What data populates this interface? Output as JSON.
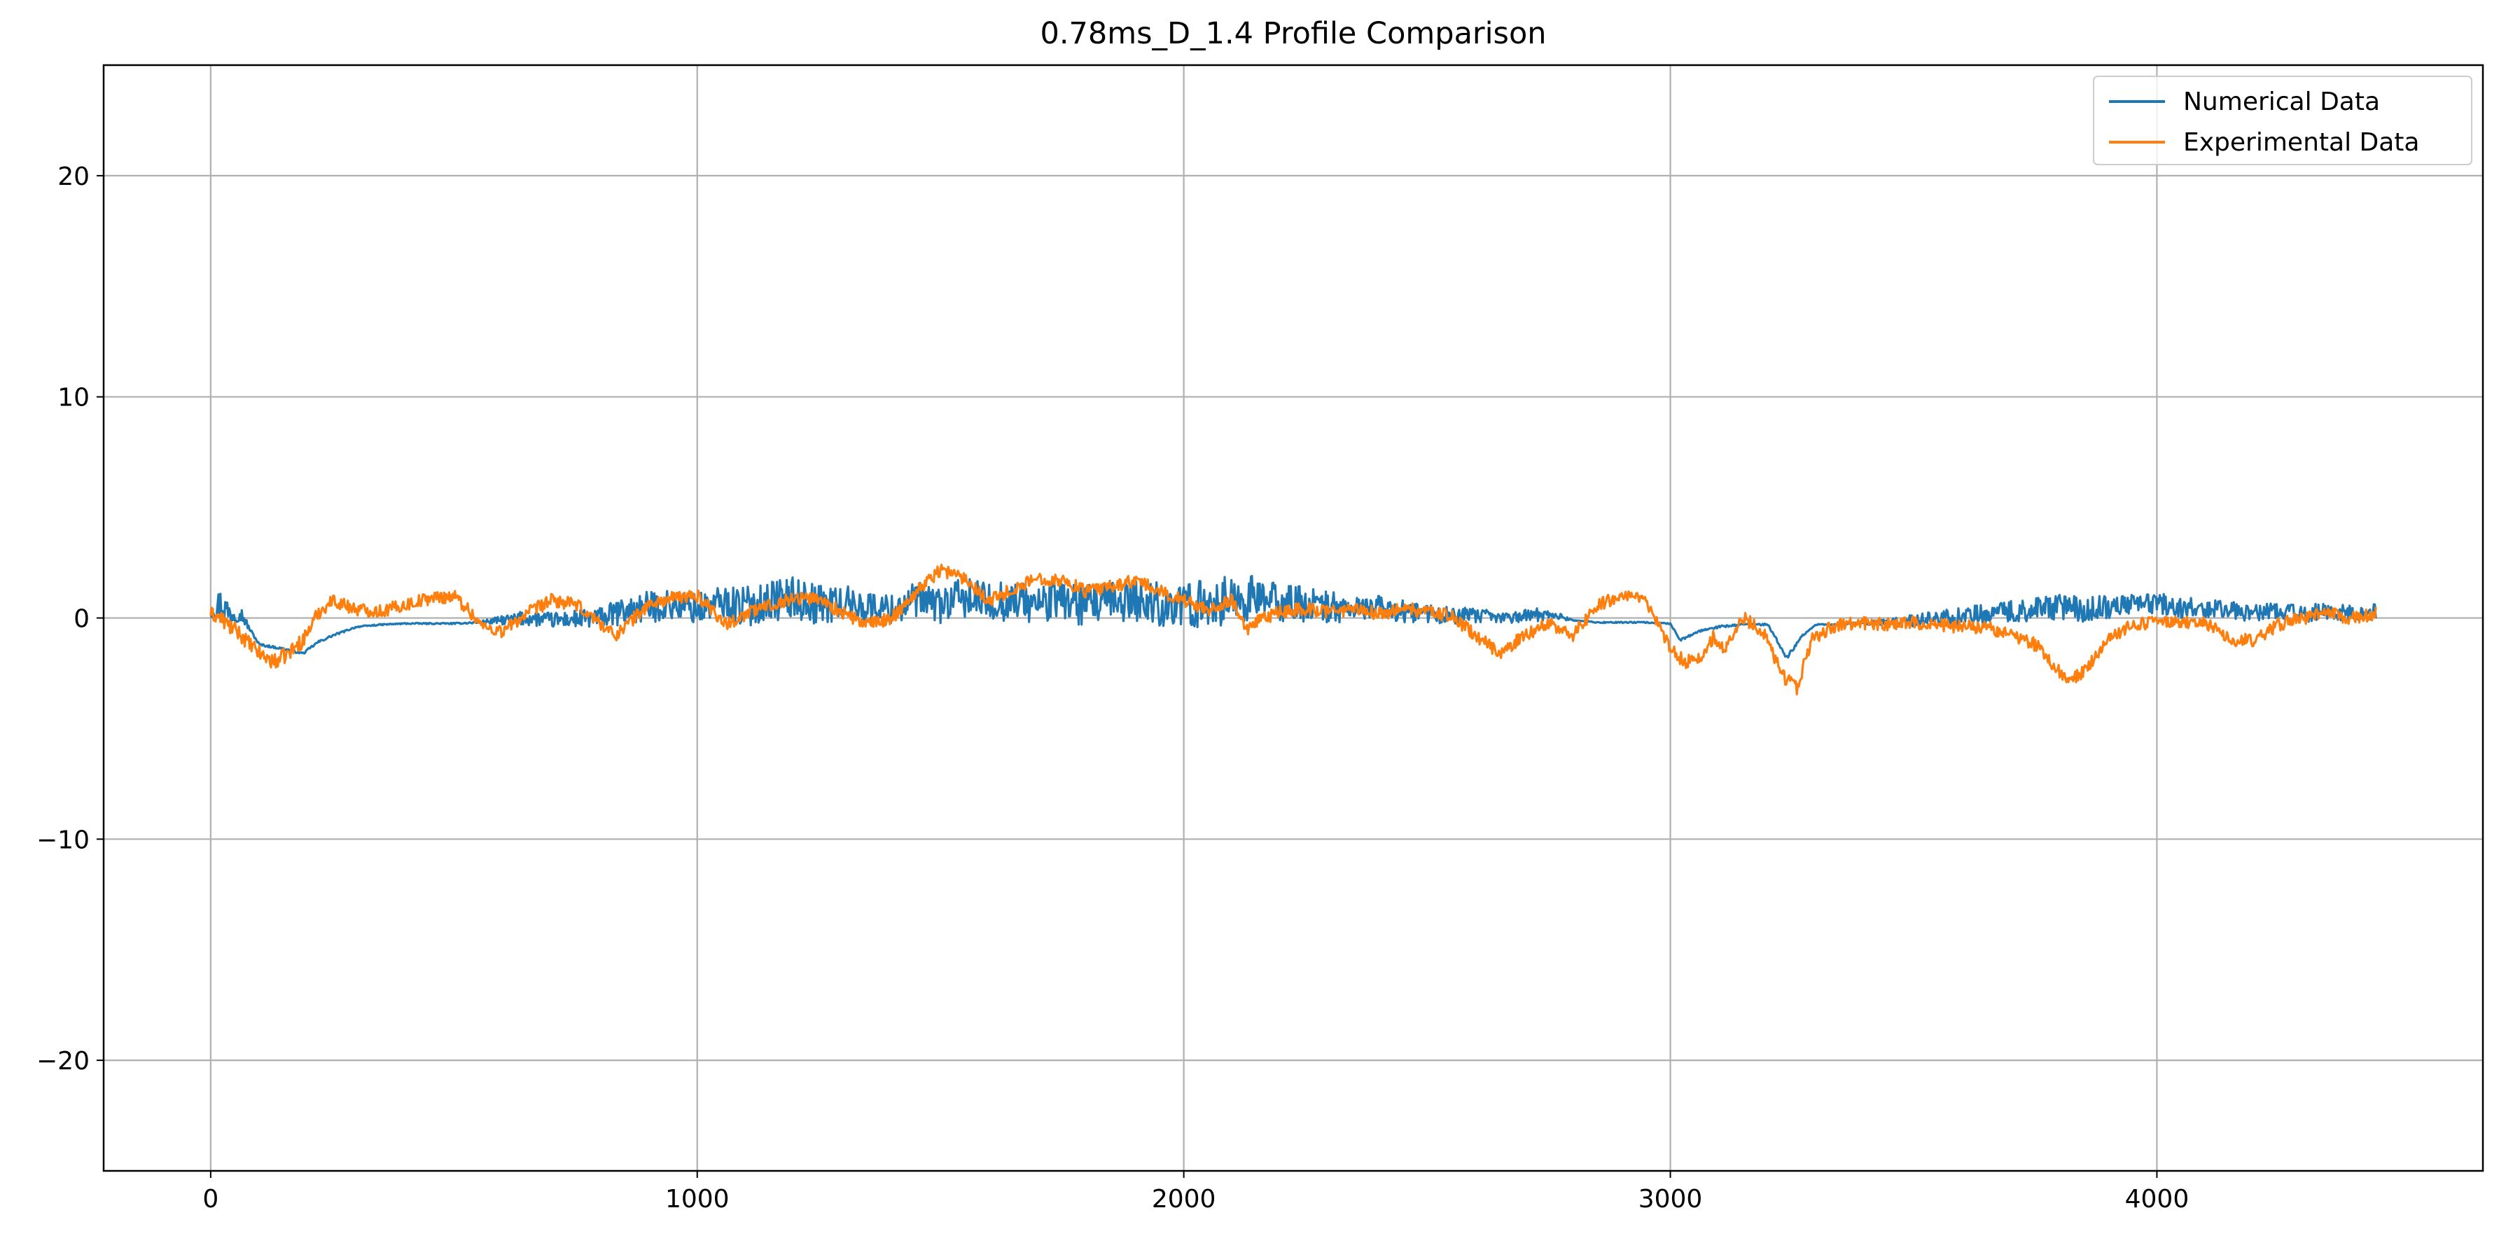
{
  "chart_data": {
    "type": "line",
    "title": "0.78ms_D_1.4 Profile Comparison",
    "xlabel": "",
    "ylabel": "",
    "xlim": [
      -220,
      4670
    ],
    "ylim": [
      -25,
      25
    ],
    "x_ticks": [
      0,
      1000,
      2000,
      3000,
      4000
    ],
    "x_tick_labels": [
      "0",
      "1000",
      "2000",
      "3000",
      "4000"
    ],
    "y_ticks": [
      -20,
      -10,
      0,
      10,
      20
    ],
    "y_tick_labels": [
      "−20",
      "−10",
      "0",
      "10",
      "20"
    ],
    "grid": true,
    "legend": {
      "position": "top-right"
    },
    "series": [
      {
        "name": "Numerical Data",
        "color": "#1f77b4",
        "x": [
          0,
          20,
          40,
          60,
          80,
          100,
          150,
          190,
          220,
          250,
          300,
          350,
          400,
          500,
          550,
          600,
          650,
          700,
          750,
          800,
          850,
          900,
          950,
          1000,
          1050,
          1100,
          1150,
          1200,
          1250,
          1300,
          1350,
          1400,
          1450,
          1500,
          1550,
          1600,
          1650,
          1700,
          1750,
          1800,
          1850,
          1900,
          1950,
          2000,
          2050,
          2100,
          2150,
          2200,
          2250,
          2300,
          2350,
          2400,
          2450,
          2500,
          2550,
          2600,
          2650,
          2700,
          2750,
          2800,
          2850,
          2900,
          2950,
          3000,
          3020,
          3060,
          3100,
          3150,
          3200,
          3240,
          3270,
          3300,
          3350,
          3400,
          3450,
          3500,
          3550,
          3600,
          3650,
          3700,
          3750,
          3800,
          3850,
          3900,
          3950,
          4000,
          4050,
          4100,
          4150,
          4200,
          4250,
          4300,
          4350,
          4400,
          4450
        ],
        "values": [
          0.4,
          0.6,
          0.2,
          0.3,
          -0.5,
          -1.2,
          -1.4,
          -1.6,
          -1.1,
          -0.8,
          -0.4,
          -0.3,
          -0.25,
          -0.25,
          -0.2,
          -0.1,
          0.0,
          -0.1,
          -0.05,
          0.0,
          0.3,
          0.5,
          0.6,
          0.4,
          0.7,
          0.5,
          0.8,
          0.9,
          0.6,
          0.7,
          0.5,
          0.4,
          0.8,
          0.6,
          0.9,
          0.7,
          0.8,
          0.6,
          0.9,
          0.5,
          0.7,
          0.8,
          0.6,
          0.5,
          0.7,
          0.8,
          0.9,
          0.7,
          0.6,
          0.5,
          0.4,
          0.5,
          0.3,
          0.2,
          0.1,
          0.1,
          0.0,
          0.1,
          0.2,
          -0.1,
          -0.2,
          -0.2,
          -0.2,
          -0.25,
          -1.0,
          -0.6,
          -0.4,
          -0.3,
          -0.3,
          -1.8,
          -0.8,
          -0.3,
          -0.3,
          -0.2,
          -0.2,
          -0.1,
          0.0,
          0.1,
          0.2,
          0.3,
          0.4,
          0.5,
          0.4,
          0.5,
          0.6,
          0.7,
          0.5,
          0.4,
          0.3,
          0.2,
          0.3,
          0.2,
          0.3,
          0.2,
          0.3
        ],
        "noise": [
          0.4,
          0.8,
          0.6,
          0.4,
          0.1,
          0.05,
          0.05,
          0.05,
          0.05,
          0.05,
          0.03,
          0.03,
          0.03,
          0.03,
          0.05,
          0.2,
          0.35,
          0.35,
          0.4,
          0.5,
          0.6,
          0.7,
          0.7,
          0.7,
          0.8,
          0.9,
          0.9,
          1.0,
          0.9,
          0.8,
          0.7,
          0.7,
          0.8,
          0.9,
          0.9,
          0.9,
          0.9,
          0.9,
          1.0,
          1.0,
          1.0,
          1.0,
          1.0,
          1.0,
          1.1,
          1.1,
          1.0,
          0.9,
          0.8,
          0.7,
          0.6,
          0.5,
          0.5,
          0.4,
          0.4,
          0.35,
          0.3,
          0.3,
          0.3,
          0.03,
          0.03,
          0.03,
          0.03,
          0.03,
          0.05,
          0.05,
          0.05,
          0.05,
          0.05,
          0.1,
          0.05,
          0.03,
          0.03,
          0.1,
          0.2,
          0.3,
          0.35,
          0.4,
          0.45,
          0.5,
          0.55,
          0.6,
          0.6,
          0.55,
          0.5,
          0.5,
          0.5,
          0.45,
          0.45,
          0.4,
          0.4,
          0.4,
          0.4,
          0.35,
          0.35
        ]
      },
      {
        "name": "Experimental Data",
        "color": "#ff7f0e",
        "x": [
          0,
          20,
          40,
          60,
          80,
          100,
          130,
          160,
          190,
          220,
          250,
          300,
          350,
          400,
          450,
          500,
          520,
          560,
          600,
          650,
          700,
          750,
          800,
          830,
          860,
          900,
          950,
          1000,
          1030,
          1060,
          1100,
          1150,
          1200,
          1250,
          1300,
          1350,
          1400,
          1450,
          1500,
          1550,
          1600,
          1650,
          1700,
          1750,
          1800,
          1850,
          1900,
          1950,
          2000,
          2050,
          2100,
          2130,
          2150,
          2200,
          2250,
          2300,
          2350,
          2400,
          2450,
          2500,
          2550,
          2600,
          2650,
          2700,
          2750,
          2800,
          2850,
          2900,
          2930,
          2960,
          3000,
          3030,
          3060,
          3090,
          3110,
          3150,
          3190,
          3230,
          3260,
          3290,
          3330,
          3380,
          3450,
          3500,
          3550,
          3600,
          3650,
          3700,
          3750,
          3800,
          3820,
          3850,
          3900,
          3950,
          4000,
          4050,
          4100,
          4150,
          4200,
          4250,
          4300,
          4350,
          4400,
          4450
        ],
        "values": [
          0.2,
          0.0,
          -0.4,
          -0.7,
          -1.2,
          -1.6,
          -2.0,
          -1.6,
          -1.0,
          0.2,
          0.8,
          0.4,
          0.3,
          0.6,
          0.9,
          1.0,
          0.6,
          -0.4,
          -0.6,
          0.2,
          0.8,
          0.6,
          -0.2,
          -0.8,
          -0.2,
          0.6,
          0.9,
          1.0,
          0.4,
          -0.3,
          0.2,
          0.6,
          0.9,
          0.9,
          0.2,
          -0.3,
          0.0,
          1.2,
          2.2,
          1.8,
          0.8,
          1.3,
          1.8,
          1.7,
          1.2,
          1.4,
          1.7,
          1.2,
          0.8,
          0.4,
          0.8,
          -0.6,
          -0.2,
          0.3,
          0.4,
          0.3,
          0.4,
          0.2,
          0.4,
          0.3,
          0.1,
          -0.8,
          -1.6,
          -0.8,
          -0.2,
          -0.8,
          0.6,
          1.0,
          1.2,
          0.3,
          -1.4,
          -2.0,
          -1.8,
          -0.8,
          -1.4,
          0.0,
          -0.6,
          -2.6,
          -3.2,
          -1.0,
          -0.4,
          -0.2,
          -0.3,
          -0.2,
          -0.3,
          -0.4,
          -0.4,
          -0.8,
          -1.2,
          -2.4,
          -2.8,
          -2.4,
          -1.0,
          -0.3,
          -0.2,
          -0.2,
          -0.2,
          -1.0,
          -1.0,
          -0.3,
          0.0,
          0.2,
          0.0,
          0.2
        ],
        "noise": [
          0.3,
          0.35,
          0.35,
          0.35,
          0.35,
          0.35,
          0.35,
          0.35,
          0.35,
          0.3,
          0.3,
          0.3,
          0.3,
          0.3,
          0.3,
          0.3,
          0.3,
          0.3,
          0.3,
          0.3,
          0.3,
          0.3,
          0.3,
          0.3,
          0.3,
          0.3,
          0.3,
          0.3,
          0.3,
          0.3,
          0.3,
          0.3,
          0.3,
          0.3,
          0.3,
          0.3,
          0.3,
          0.3,
          0.3,
          0.3,
          0.3,
          0.3,
          0.3,
          0.3,
          0.3,
          0.3,
          0.3,
          0.3,
          0.3,
          0.3,
          0.3,
          0.3,
          0.3,
          0.3,
          0.3,
          0.3,
          0.3,
          0.3,
          0.3,
          0.3,
          0.3,
          0.3,
          0.3,
          0.3,
          0.3,
          0.3,
          0.3,
          0.3,
          0.3,
          0.3,
          0.3,
          0.3,
          0.3,
          0.3,
          0.3,
          0.3,
          0.3,
          0.3,
          0.3,
          0.3,
          0.3,
          0.3,
          0.3,
          0.3,
          0.3,
          0.3,
          0.3,
          0.3,
          0.3,
          0.3,
          0.3,
          0.3,
          0.3,
          0.3,
          0.3,
          0.3,
          0.3,
          0.3,
          0.3,
          0.3,
          0.3,
          0.3,
          0.3,
          0.3
        ]
      }
    ]
  }
}
